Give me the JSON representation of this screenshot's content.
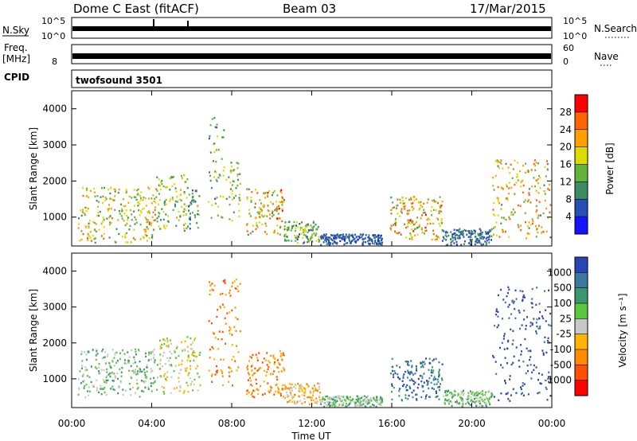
{
  "header": {
    "station": "Dome C East (fitACF)",
    "beam": "Beam 03",
    "date": "17/Mar/2015"
  },
  "strips": {
    "nsky_label": "N.Sky",
    "nsky_ticks": [
      "10^5",
      "10^0"
    ],
    "nsearch_label": "N.Search",
    "nsearch_ticks": [
      "10^5",
      "10^0"
    ],
    "freq_label": "Freq.",
    "freq_unit": "[MHz]",
    "freq_tick": "8",
    "nave_ticks": [
      "60",
      "0"
    ],
    "nave_label": "Nave",
    "cpid_label": "CPID",
    "cpid_value": "twofsound 3501"
  },
  "x_axis": {
    "label": "Time UT",
    "ticks": [
      "00:00",
      "04:00",
      "08:00",
      "12:00",
      "16:00",
      "20:00",
      "00:00"
    ]
  },
  "colors": {
    "power": [
      "#1414ff",
      "#2850b4",
      "#3c8c64",
      "#64b43c",
      "#dcdc00",
      "#ffa000",
      "#ff6400",
      "#ff0000"
    ],
    "velocity": [
      "#2846b4",
      "#3c78a0",
      "#3c966e",
      "#5ac83c",
      "#c8c8c8",
      "#ffb400",
      "#ff8c00",
      "#ff5000",
      "#ff0000"
    ]
  },
  "chart_data": [
    {
      "type": "heatmap",
      "panel": "power",
      "ylabel": "Slant Range [km]",
      "yticks": [
        "1000",
        "2000",
        "3000",
        "4000"
      ],
      "ylim": [
        200,
        4500
      ],
      "xlim": [
        0,
        24
      ],
      "colorbar_label": "Power [dB]",
      "colorbar_ticks": [
        "4",
        "8",
        "12",
        "16",
        "20",
        "24",
        "28"
      ],
      "colorbar_range": [
        0,
        32
      ],
      "blobs": [
        {
          "t": 0.3,
          "t2": 4.2,
          "r1": 300,
          "r2": 1850,
          "peak": 22
        },
        {
          "t": 4.2,
          "t2": 5.8,
          "r1": 600,
          "r2": 2200,
          "peak": 18
        },
        {
          "t": 5.8,
          "t2": 6.4,
          "r1": 700,
          "r2": 1800,
          "peak": 14
        },
        {
          "t": 6.8,
          "t2": 7.6,
          "r1": 900,
          "r2": 3800,
          "peak": 16
        },
        {
          "t": 7.7,
          "t2": 8.4,
          "r1": 800,
          "r2": 2600,
          "peak": 18
        },
        {
          "t": 8.7,
          "t2": 10.6,
          "r1": 500,
          "r2": 1800,
          "peak": 25
        },
        {
          "t": 10.6,
          "t2": 12.4,
          "r1": 300,
          "r2": 900,
          "peak": 16
        },
        {
          "t": 12.4,
          "t2": 15.5,
          "r1": 250,
          "r2": 550,
          "peak": 8
        },
        {
          "t": 15.9,
          "t2": 18.5,
          "r1": 400,
          "r2": 1600,
          "peak": 25
        },
        {
          "t": 18.5,
          "t2": 21.0,
          "r1": 250,
          "r2": 700,
          "peak": 10
        },
        {
          "t": 21.0,
          "t2": 23.9,
          "r1": 400,
          "r2": 2600,
          "peak": 24
        }
      ]
    },
    {
      "type": "heatmap",
      "panel": "velocity",
      "ylabel": "Slant Range [km]",
      "yticks": [
        "1000",
        "2000",
        "3000",
        "4000"
      ],
      "ylim": [
        200,
        4500
      ],
      "xlim": [
        0,
        24
      ],
      "colorbar_label": "Velocity [m s⁻¹]",
      "colorbar_ticks": [
        "1000",
        "500",
        "100",
        "25",
        "-25",
        "-100",
        "-500",
        "-1000"
      ],
      "blobs": [
        {
          "t": 0.3,
          "t2": 4.2,
          "r1": 500,
          "r2": 1850,
          "peak": 3
        },
        {
          "t": 4.2,
          "t2": 6.4,
          "r1": 600,
          "r2": 2200,
          "peak": 4
        },
        {
          "t": 6.8,
          "t2": 8.4,
          "r1": 800,
          "r2": 3800,
          "peak": 6
        },
        {
          "t": 8.7,
          "t2": 10.6,
          "r1": 500,
          "r2": 1800,
          "peak": 6
        },
        {
          "t": 10.6,
          "t2": 12.4,
          "r1": 300,
          "r2": 900,
          "peak": 5
        },
        {
          "t": 12.4,
          "t2": 15.5,
          "r1": 250,
          "r2": 550,
          "peak": 3
        },
        {
          "t": 15.9,
          "t2": 18.5,
          "r1": 400,
          "r2": 1600,
          "peak": 1
        },
        {
          "t": 18.5,
          "t2": 21.0,
          "r1": 250,
          "r2": 700,
          "peak": 3
        },
        {
          "t": 21.0,
          "t2": 23.9,
          "r1": 400,
          "r2": 3600,
          "peak": 0
        }
      ]
    }
  ]
}
